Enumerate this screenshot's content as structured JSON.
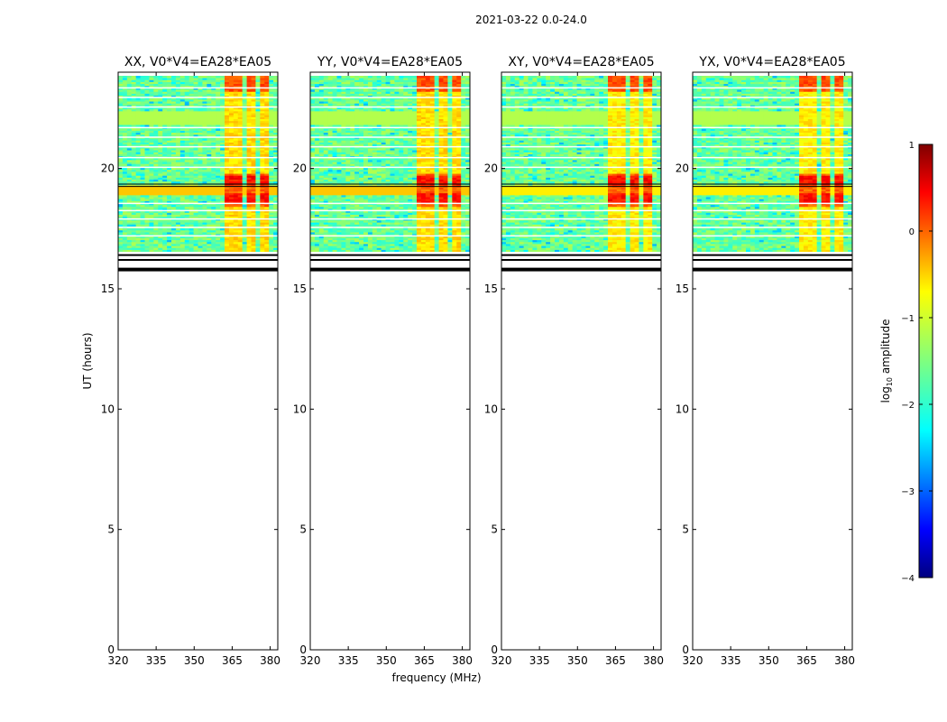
{
  "figure_title": "2021-03-22 0.0-24.0",
  "chart_data": {
    "type": "heatmap",
    "suptitle": "2021-03-22 0.0-24.0",
    "ylabel": "UT (hours)",
    "xlabel": "frequency (MHz)",
    "xlim": [
      320,
      383
    ],
    "ylim": [
      0,
      24
    ],
    "xticks": [
      320,
      335,
      350,
      365,
      380
    ],
    "yticks": [
      0,
      5,
      10,
      15,
      20
    ],
    "data_start_hour": 16.55,
    "data_end_hour": 23.85,
    "flagged_band_hours": [
      16.4,
      16.2,
      15.8
    ],
    "band_channels_mhz": [
      364,
      368,
      373,
      378
    ],
    "strong_rfi_hours": [
      18.8,
      19.5
    ],
    "panels": [
      {
        "title": "XX, V0*V4=EA28*EA05",
        "pol": "XX"
      },
      {
        "title": "YY, V0*V4=EA28*EA05",
        "pol": "YY"
      },
      {
        "title": "XY, V0*V4=EA28*EA05",
        "pol": "XY"
      },
      {
        "title": "YX, V0*V4=EA28*EA05",
        "pol": "YX"
      }
    ],
    "colorbar": {
      "label": "log10 amplitude",
      "label_base": "log",
      "label_sub": "10",
      "label_rest": " amplitude",
      "range": [
        -4,
        1
      ],
      "ticks": [
        -4,
        -3,
        -2,
        -1,
        0,
        1
      ],
      "tick_labels": [
        "−4",
        "−3",
        "−2",
        "−1",
        "0",
        "1"
      ],
      "colormap": "jet",
      "colors": [
        "#00007f",
        "#0000ff",
        "#007fff",
        "#00ffff",
        "#7fff7f",
        "#ffff00",
        "#ff7f00",
        "#ff0000",
        "#7f0000"
      ]
    }
  }
}
